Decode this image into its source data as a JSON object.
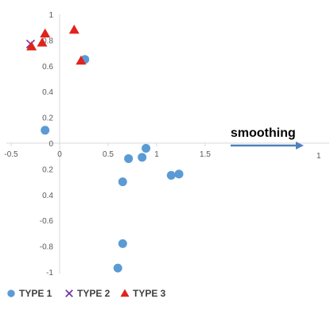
{
  "chart_data": {
    "type": "scatter",
    "title": "",
    "xlabel": "",
    "ylabel": "",
    "grid": false,
    "legend_position": "bottom",
    "xlim": [
      -0.5,
      1.55
    ],
    "ylim": [
      -1,
      1
    ],
    "x_ticks": [
      "-0.5",
      "0",
      "0.5",
      "1",
      "1.5"
    ],
    "y_ticks": [
      "1",
      "0.8",
      "0.6",
      "0.4",
      "0.2",
      "0",
      "0.2",
      "0.4",
      "-0.6",
      "-0.8",
      "-1"
    ],
    "series": [
      {
        "name": "TYPE 1",
        "marker": "circle",
        "color": "#5B9BD5",
        "points": [
          [
            -0.15,
            0.1
          ],
          [
            0.26,
            0.65
          ],
          [
            0.71,
            -0.12
          ],
          [
            0.85,
            -0.11
          ],
          [
            0.89,
            -0.04
          ],
          [
            0.65,
            -0.3
          ],
          [
            1.15,
            -0.25
          ],
          [
            1.23,
            -0.24
          ],
          [
            0.65,
            -0.78
          ],
          [
            0.6,
            -0.97
          ]
        ]
      },
      {
        "name": "TYPE 2",
        "marker": "x",
        "color": "#7030A0",
        "points": [
          [
            -0.3,
            0.77
          ]
        ]
      },
      {
        "name": "TYPE 3",
        "marker": "triangle",
        "color": "#E0231C",
        "points": [
          [
            -0.29,
            0.75
          ],
          [
            -0.18,
            0.78
          ],
          [
            -0.15,
            0.85
          ],
          [
            0.15,
            0.88
          ],
          [
            0.22,
            0.64
          ]
        ]
      }
    ],
    "annotation": {
      "text": "smoothing",
      "arrow_end_label": "1"
    }
  }
}
